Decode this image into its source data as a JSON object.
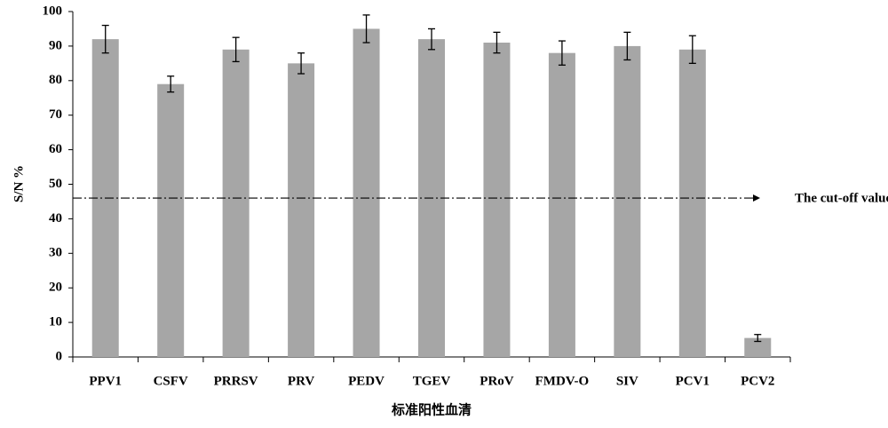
{
  "chart_data": {
    "type": "bar",
    "categories": [
      "PPV1",
      "CSFV",
      "PRRSV",
      "PRV",
      "PEDV",
      "TGEV",
      "PRoV",
      "FMDV-O",
      "SIV",
      "PCV1",
      "PCV2"
    ],
    "values": [
      92,
      79,
      89,
      85,
      95,
      92,
      91,
      88,
      90,
      89,
      5.5
    ],
    "errors": [
      4,
      2.3,
      3.5,
      3,
      4,
      3,
      3,
      3.5,
      4,
      4,
      1
    ],
    "color": "#a6a6a6",
    "ylim": [
      0,
      100
    ],
    "yticks": [
      0,
      10,
      20,
      30,
      40,
      50,
      60,
      70,
      80,
      90,
      100
    ],
    "ylabel": "S/N %",
    "xlabel": "标准阳性血清",
    "cutoff": 46,
    "annotation": "The cut-off value",
    "grid": false
  }
}
